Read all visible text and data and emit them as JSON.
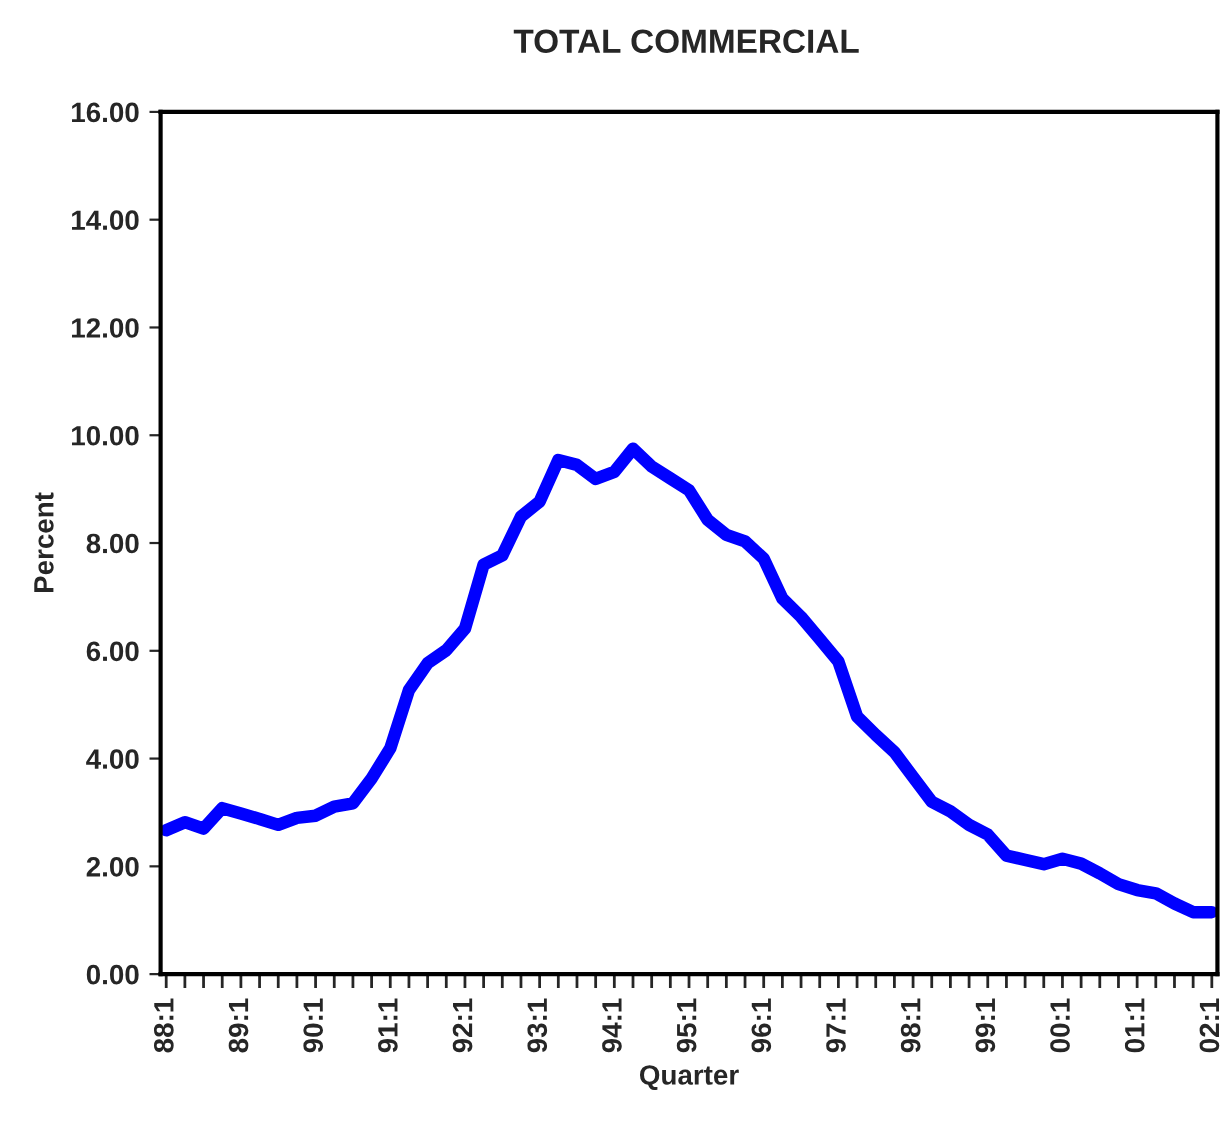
{
  "chart_data": {
    "type": "line",
    "title": "TOTAL COMMERCIAL",
    "xlabel": "Quarter",
    "ylabel": "Percent",
    "categories": [
      "88:1",
      null,
      null,
      null,
      "89:1",
      null,
      null,
      null,
      "90:1",
      null,
      null,
      null,
      "91:1",
      null,
      null,
      null,
      "92:1",
      null,
      null,
      null,
      "93:1",
      null,
      null,
      null,
      "94:1",
      null,
      null,
      null,
      "95:1",
      null,
      null,
      null,
      "96:1",
      null,
      null,
      null,
      "97:1",
      null,
      null,
      null,
      "98:1",
      null,
      null,
      null,
      "99:1",
      null,
      null,
      null,
      "00:1",
      null,
      null,
      null,
      "01:1",
      null,
      null,
      null,
      "02:1"
    ],
    "series": [
      {
        "color": "#0000ff",
        "values": [
          2.67,
          2.82,
          2.7,
          3.08,
          2.98,
          2.88,
          2.77,
          2.9,
          2.94,
          3.11,
          3.17,
          3.63,
          4.19,
          5.27,
          5.77,
          6.01,
          6.41,
          7.6,
          7.77,
          8.49,
          8.77,
          9.54,
          9.45,
          9.19,
          9.32,
          9.75,
          9.42,
          9.2,
          8.98,
          8.43,
          8.15,
          8.03,
          7.71,
          6.97,
          6.63,
          6.22,
          5.8,
          4.78,
          4.44,
          4.12,
          3.66,
          3.2,
          3.02,
          2.77,
          2.59,
          2.2,
          2.12,
          2.04,
          2.14,
          2.05,
          1.87,
          1.67,
          1.56,
          1.5,
          1.31,
          1.15,
          1.15
        ]
      }
    ],
    "ylim": [
      0,
      16
    ],
    "yticks": [
      {
        "value": 0,
        "label": "0.00"
      },
      {
        "value": 2,
        "label": "2.00"
      },
      {
        "value": 4,
        "label": "4.00"
      },
      {
        "value": 6,
        "label": "6.00"
      },
      {
        "value": 8,
        "label": "8.00"
      },
      {
        "value": 10,
        "label": "10.00"
      },
      {
        "value": 12,
        "label": "12.00"
      },
      {
        "value": 14,
        "label": "14.00"
      },
      {
        "value": 16,
        "label": "16.00"
      }
    ],
    "grid": false,
    "marker": "none",
    "line_style": "solid"
  }
}
